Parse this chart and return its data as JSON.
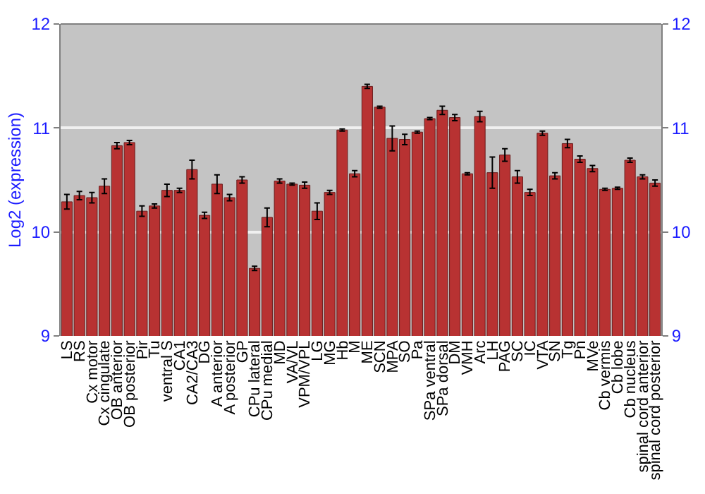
{
  "chart_data": {
    "type": "bar",
    "ylabel": "Log2 (expression)",
    "categories": [
      "LS",
      "RS",
      "Cx motor",
      "Cx cingulate",
      "OB anterior",
      "OB posterior",
      "Pir",
      "Tu",
      "ventral S",
      "CA1",
      "CA2/CA3",
      "DG",
      "A anterior",
      "A posterior",
      "GP",
      "CPu lateral",
      "CPu medial",
      "MD",
      "VA/VL",
      "VPM/VPL",
      "LG",
      "MG",
      "Hb",
      "M",
      "ME",
      "SCN",
      "MPA",
      "SO",
      "Pa",
      "SPa ventral",
      "SPa dorsal",
      "DM",
      "VMH",
      "Arc",
      "LH",
      "PAG",
      "SC",
      "IC",
      "VTA",
      "SN",
      "Tg",
      "Pn",
      "MVe",
      "Cb vermis",
      "Cb lobe",
      "Cb nucleus",
      "spinal cord anterior",
      "spinal cord posterior"
    ],
    "values": [
      10.29,
      10.35,
      10.33,
      10.44,
      10.83,
      10.86,
      10.2,
      10.25,
      10.4,
      10.4,
      10.6,
      10.16,
      10.46,
      10.33,
      10.5,
      9.65,
      10.14,
      10.49,
      10.46,
      10.45,
      10.2,
      10.38,
      10.98,
      10.56,
      11.4,
      11.2,
      10.9,
      10.89,
      10.96,
      11.09,
      11.17,
      11.1,
      10.56,
      11.11,
      10.57,
      10.74,
      10.53,
      10.38,
      10.95,
      10.54,
      10.85,
      10.7,
      10.61,
      10.41,
      10.42,
      10.69,
      10.53,
      10.47
    ],
    "errors": [
      0.07,
      0.04,
      0.05,
      0.07,
      0.03,
      0.02,
      0.05,
      0.02,
      0.06,
      0.02,
      0.09,
      0.03,
      0.09,
      0.03,
      0.03,
      0.02,
      0.09,
      0.02,
      0.01,
      0.03,
      0.08,
      0.02,
      0.01,
      0.03,
      0.02,
      0.01,
      0.12,
      0.05,
      0.01,
      0.01,
      0.04,
      0.03,
      0.01,
      0.05,
      0.15,
      0.06,
      0.06,
      0.03,
      0.02,
      0.03,
      0.04,
      0.03,
      0.03,
      0.01,
      0.01,
      0.02,
      0.02,
      0.03
    ],
    "color": "#b83232",
    "ylim": [
      9,
      12
    ],
    "yticks": [
      9,
      10,
      11,
      12
    ],
    "y2lim": [
      9,
      12
    ],
    "y2ticks": [
      9,
      10,
      11,
      12
    ],
    "grid": "y"
  }
}
